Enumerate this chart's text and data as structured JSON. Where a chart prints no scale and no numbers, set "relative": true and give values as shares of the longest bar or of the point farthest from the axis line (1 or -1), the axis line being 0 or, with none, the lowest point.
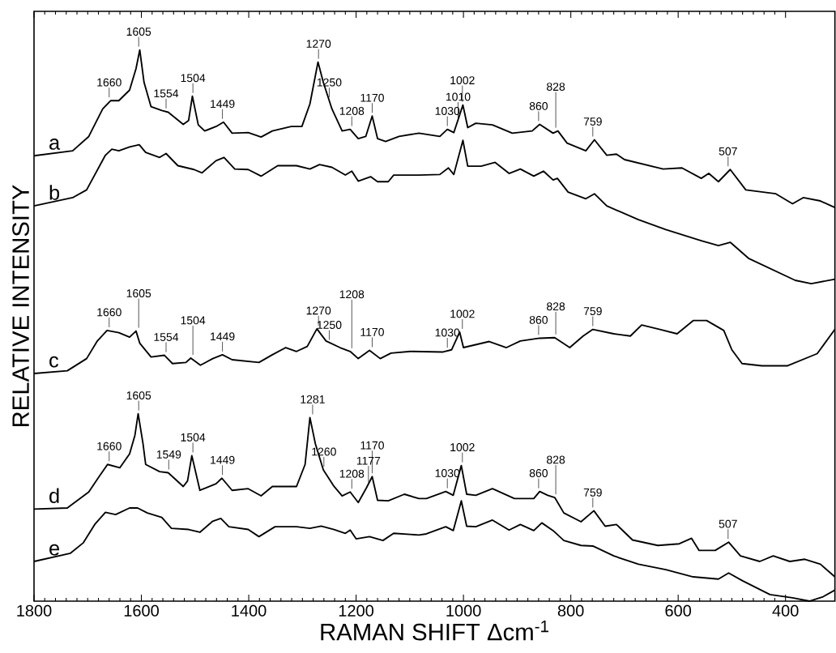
{
  "chart_data": {
    "type": "line",
    "xlabel": "RAMAN SHIFT Δcm$^{-1}$",
    "ylabel": "RELATIVE INTENSITY",
    "relative": true,
    "xlim": [
      1800,
      308
    ],
    "xticks": [
      1800,
      1600,
      1400,
      1200,
      1000,
      800,
      600,
      400
    ],
    "series": [
      {
        "name": "a",
        "color": "#000000",
        "x": [
          1800,
          1728,
          1698,
          1672,
          1657,
          1642,
          1622,
          1610,
          1603,
          1595,
          1582,
          1562,
          1550,
          1522,
          1512,
          1505,
          1494,
          1482,
          1461,
          1447,
          1431,
          1401,
          1377,
          1356,
          1321,
          1301,
          1286,
          1271,
          1261,
          1245,
          1226,
          1211,
          1196,
          1182,
          1170,
          1160,
          1145,
          1120,
          1083,
          1044,
          1030,
          1018,
          1001,
          992,
          977,
          946,
          909,
          872,
          858,
          833,
          824,
          807,
          772,
          756,
          733,
          715,
          700,
          628,
          593,
          557,
          543,
          525,
          503,
          474,
          418,
          387,
          367,
          335,
          308
        ],
        "values": [
          0.808,
          0.817,
          0.843,
          0.893,
          0.908,
          0.908,
          0.927,
          0.966,
          1.0,
          0.941,
          0.897,
          0.89,
          0.887,
          0.865,
          0.872,
          0.916,
          0.864,
          0.853,
          0.861,
          0.869,
          0.849,
          0.85,
          0.842,
          0.853,
          0.861,
          0.861,
          0.902,
          0.978,
          0.941,
          0.893,
          0.853,
          0.856,
          0.839,
          0.843,
          0.88,
          0.839,
          0.834,
          0.843,
          0.849,
          0.843,
          0.856,
          0.85,
          0.9,
          0.859,
          0.867,
          0.864,
          0.849,
          0.853,
          0.865,
          0.849,
          0.853,
          0.831,
          0.817,
          0.837,
          0.809,
          0.811,
          0.801,
          0.784,
          0.786,
          0.767,
          0.776,
          0.761,
          0.783,
          0.746,
          0.739,
          0.721,
          0.732,
          0.726,
          0.714
        ]
      },
      {
        "name": "b",
        "color": "#000000",
        "x": [
          1800,
          1728,
          1702,
          1667,
          1655,
          1642,
          1622,
          1604,
          1592,
          1566,
          1554,
          1532,
          1502,
          1487,
          1461,
          1446,
          1426,
          1401,
          1377,
          1346,
          1311,
          1286,
          1268,
          1245,
          1220,
          1208,
          1196,
          1173,
          1160,
          1140,
          1130,
          1083,
          1044,
          1028,
          1018,
          1001,
          992,
          967,
          941,
          915,
          894,
          869,
          851,
          833,
          825,
          805,
          772,
          756,
          733,
          674,
          623,
          557,
          525,
          503,
          469,
          382,
          352,
          308
        ],
        "values": [
          0.717,
          0.732,
          0.746,
          0.809,
          0.82,
          0.817,
          0.824,
          0.828,
          0.814,
          0.805,
          0.812,
          0.79,
          0.783,
          0.777,
          0.799,
          0.805,
          0.784,
          0.783,
          0.771,
          0.79,
          0.79,
          0.784,
          0.792,
          0.787,
          0.773,
          0.78,
          0.762,
          0.77,
          0.761,
          0.761,
          0.773,
          0.773,
          0.774,
          0.786,
          0.774,
          0.836,
          0.789,
          0.789,
          0.796,
          0.776,
          0.784,
          0.771,
          0.78,
          0.764,
          0.767,
          0.742,
          0.73,
          0.739,
          0.717,
          0.692,
          0.674,
          0.654,
          0.645,
          0.651,
          0.622,
          0.582,
          0.576,
          0.584
        ]
      },
      {
        "name": "c",
        "color": "#000000",
        "x": [
          1800,
          1738,
          1702,
          1682,
          1664,
          1642,
          1622,
          1610,
          1603,
          1582,
          1557,
          1542,
          1517,
          1508,
          1490,
          1467,
          1449,
          1431,
          1381,
          1356,
          1331,
          1311,
          1291,
          1273,
          1256,
          1230,
          1211,
          1196,
          1175,
          1155,
          1135,
          1099,
          1038,
          1022,
          1007,
          1000,
          952,
          920,
          894,
          858,
          830,
          802,
          777,
          759,
          720,
          689,
          668,
          634,
          602,
          572,
          547,
          515,
          500,
          481,
          444,
          396,
          341,
          308
        ],
        "values": [
          0.413,
          0.418,
          0.44,
          0.472,
          0.491,
          0.487,
          0.479,
          0.49,
          0.468,
          0.443,
          0.446,
          0.431,
          0.433,
          0.441,
          0.428,
          0.44,
          0.447,
          0.438,
          0.433,
          0.447,
          0.46,
          0.453,
          0.462,
          0.494,
          0.472,
          0.46,
          0.453,
          0.44,
          0.455,
          0.44,
          0.45,
          0.453,
          0.452,
          0.456,
          0.488,
          0.46,
          0.471,
          0.46,
          0.472,
          0.477,
          0.478,
          0.46,
          0.481,
          0.493,
          0.485,
          0.481,
          0.501,
          0.493,
          0.485,
          0.509,
          0.509,
          0.491,
          0.456,
          0.431,
          0.427,
          0.427,
          0.449,
          0.493
        ]
      },
      {
        "name": "d",
        "color": "#000000",
        "x": [
          1800,
          1738,
          1698,
          1678,
          1663,
          1640,
          1622,
          1612,
          1606,
          1597,
          1592,
          1566,
          1550,
          1522,
          1514,
          1506,
          1491,
          1461,
          1450,
          1431,
          1401,
          1377,
          1356,
          1311,
          1295,
          1286,
          1276,
          1261,
          1241,
          1226,
          1211,
          1196,
          1181,
          1170,
          1160,
          1140,
          1110,
          1083,
          1069,
          1033,
          1019,
          1004,
          994,
          977,
          946,
          905,
          869,
          858,
          843,
          830,
          813,
          781,
          757,
          736,
          715,
          685,
          638,
          598,
          575,
          561,
          531,
          506,
          484,
          448,
          423,
          392,
          364,
          335,
          308
        ],
        "values": [
          0.167,
          0.169,
          0.198,
          0.227,
          0.248,
          0.242,
          0.267,
          0.301,
          0.34,
          0.286,
          0.248,
          0.235,
          0.233,
          0.208,
          0.218,
          0.264,
          0.201,
          0.213,
          0.223,
          0.201,
          0.204,
          0.191,
          0.208,
          0.208,
          0.248,
          0.333,
          0.286,
          0.238,
          0.208,
          0.191,
          0.198,
          0.179,
          0.205,
          0.226,
          0.183,
          0.182,
          0.194,
          0.186,
          0.186,
          0.199,
          0.192,
          0.246,
          0.194,
          0.192,
          0.204,
          0.186,
          0.186,
          0.199,
          0.192,
          0.188,
          0.16,
          0.144,
          0.164,
          0.136,
          0.139,
          0.111,
          0.101,
          0.104,
          0.114,
          0.092,
          0.092,
          0.107,
          0.082,
          0.072,
          0.082,
          0.072,
          0.076,
          0.067,
          0.044
        ]
      },
      {
        "name": "e",
        "color": "#000000",
        "x": [
          1800,
          1732,
          1708,
          1687,
          1667,
          1648,
          1622,
          1607,
          1589,
          1562,
          1544,
          1512,
          1491,
          1467,
          1452,
          1437,
          1401,
          1381,
          1351,
          1311,
          1286,
          1265,
          1241,
          1220,
          1211,
          1200,
          1175,
          1150,
          1130,
          1083,
          1069,
          1033,
          1019,
          1004,
          994,
          977,
          946,
          915,
          894,
          869,
          854,
          833,
          813,
          781,
          759,
          720,
          674,
          623,
          572,
          525,
          506,
          480,
          429,
          387,
          355,
          330,
          308
        ],
        "values": [
          0.072,
          0.087,
          0.106,
          0.139,
          0.161,
          0.157,
          0.169,
          0.169,
          0.16,
          0.152,
          0.132,
          0.13,
          0.125,
          0.145,
          0.15,
          0.135,
          0.13,
          0.117,
          0.135,
          0.135,
          0.132,
          0.136,
          0.13,
          0.123,
          0.129,
          0.113,
          0.117,
          0.11,
          0.123,
          0.12,
          0.122,
          0.135,
          0.128,
          0.182,
          0.136,
          0.135,
          0.147,
          0.129,
          0.139,
          0.128,
          0.142,
          0.128,
          0.11,
          0.101,
          0.1,
          0.082,
          0.067,
          0.057,
          0.044,
          0.04,
          0.051,
          0.037,
          0.012,
          0.006,
          0.0,
          0.008,
          0.02
        ]
      }
    ],
    "annotations": [
      {
        "text": "1660",
        "x": 1660,
        "y": 0.908
      },
      {
        "text": "1605",
        "x": 1605,
        "y": 1.0
      },
      {
        "text": "1554",
        "x": 1554,
        "y": 0.888
      },
      {
        "text": "1504",
        "x": 1504,
        "y": 0.916
      },
      {
        "text": "1449",
        "x": 1449,
        "y": 0.869
      },
      {
        "text": "1270",
        "x": 1270,
        "y": 0.978
      },
      {
        "text": "1250",
        "x": 1250,
        "y": 0.908
      },
      {
        "text": "1208",
        "x": 1208,
        "y": 0.856
      },
      {
        "text": "1170",
        "x": 1170,
        "y": 0.88
      },
      {
        "text": "1030",
        "x": 1030,
        "y": 0.856
      },
      {
        "text": "1010",
        "x": 1010,
        "y": 0.87
      },
      {
        "text": "1002",
        "x": 1002,
        "y": 0.9
      },
      {
        "text": "860",
        "x": 860,
        "y": 0.865
      },
      {
        "text": "828",
        "x": 828,
        "y": 0.853
      },
      {
        "text": "759",
        "x": 759,
        "y": 0.837
      },
      {
        "text": "507",
        "x": 507,
        "y": 0.783
      },
      {
        "text": "1660",
        "x": 1660,
        "y": 0.491
      },
      {
        "text": "1605",
        "x": 1605,
        "y": 0.49
      },
      {
        "text": "1554",
        "x": 1554,
        "y": 0.446
      },
      {
        "text": "1504",
        "x": 1504,
        "y": 0.441
      },
      {
        "text": "1449",
        "x": 1449,
        "y": 0.447
      },
      {
        "text": "1270",
        "x": 1270,
        "y": 0.494
      },
      {
        "text": "1250",
        "x": 1250,
        "y": 0.468
      },
      {
        "text": "1208",
        "x": 1208,
        "y": 0.453
      },
      {
        "text": "1170",
        "x": 1170,
        "y": 0.455
      },
      {
        "text": "1030",
        "x": 1030,
        "y": 0.454
      },
      {
        "text": "1002",
        "x": 1002,
        "y": 0.488
      },
      {
        "text": "860",
        "x": 860,
        "y": 0.477
      },
      {
        "text": "828",
        "x": 828,
        "y": 0.478
      },
      {
        "text": "759",
        "x": 759,
        "y": 0.493
      },
      {
        "text": "1660",
        "x": 1660,
        "y": 0.248
      },
      {
        "text": "1605",
        "x": 1605,
        "y": 0.34
      },
      {
        "text": "1549",
        "x": 1549,
        "y": 0.233
      },
      {
        "text": "1504",
        "x": 1504,
        "y": 0.264
      },
      {
        "text": "1449",
        "x": 1449,
        "y": 0.223
      },
      {
        "text": "1281",
        "x": 1281,
        "y": 0.333
      },
      {
        "text": "1260",
        "x": 1260,
        "y": 0.238
      },
      {
        "text": "1208",
        "x": 1208,
        "y": 0.198
      },
      {
        "text": "1177",
        "x": 1177,
        "y": 0.21
      },
      {
        "text": "1170",
        "x": 1170,
        "y": 0.226
      },
      {
        "text": "1030",
        "x": 1030,
        "y": 0.199
      },
      {
        "text": "1002",
        "x": 1002,
        "y": 0.246
      },
      {
        "text": "860",
        "x": 860,
        "y": 0.199
      },
      {
        "text": "828",
        "x": 828,
        "y": 0.188
      },
      {
        "text": "759",
        "x": 759,
        "y": 0.164
      },
      {
        "text": "507",
        "x": 507,
        "y": 0.107
      }
    ]
  }
}
